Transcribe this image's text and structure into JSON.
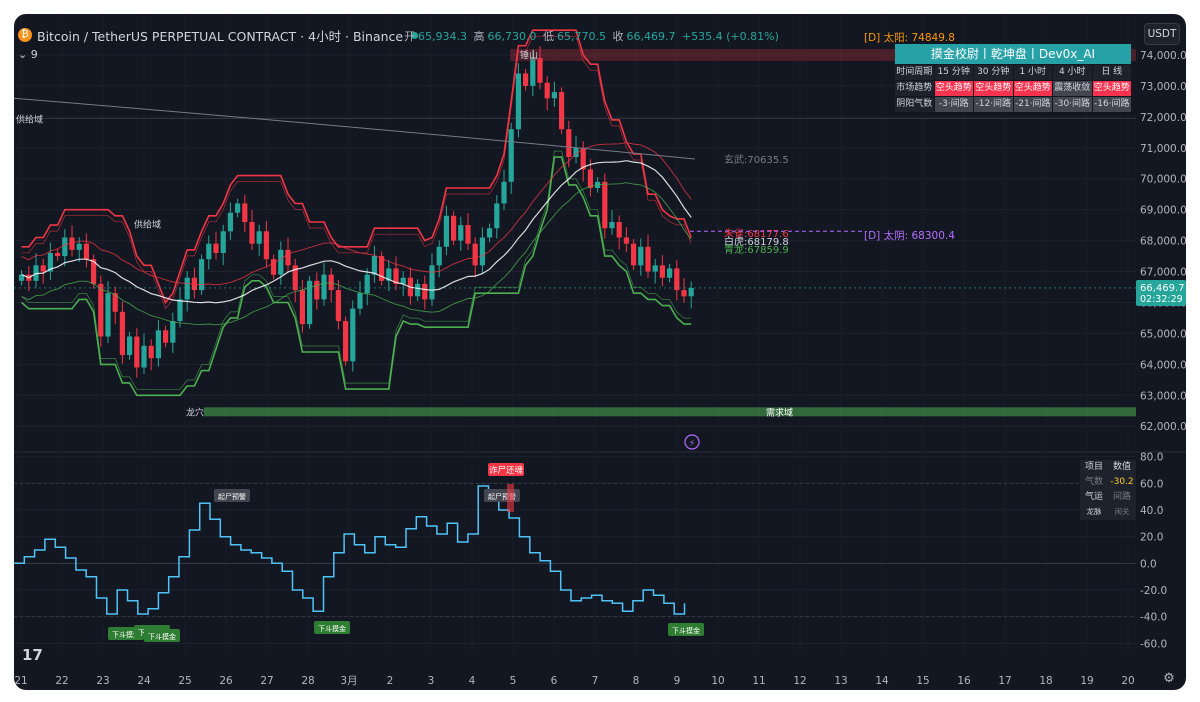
{
  "header": {
    "symbol_title": "Bitcoin / TetherUS PERPETUAL CONTRACT · 4小时 · Binance",
    "open_label": "开",
    "open": "65,934.3",
    "high_label": "高",
    "high": "66,730.0",
    "low_label": "低",
    "low": "65,770.5",
    "close_label": "收",
    "close": "66,469.7",
    "change": "+535.4 (+0.81%)",
    "indicator_count": "9",
    "currency": "USDT"
  },
  "tags": {
    "daily_sun": "[D] 太阳: 74849.8",
    "daily_moon": "[D] 太阴: 68300.4"
  },
  "price_labels": {
    "last_price": "66,469.7",
    "countdown": "02:32:29"
  },
  "dashboard": {
    "title": "摸金校尉丨乾坤盘丨Dev0x_AI",
    "rows": [
      {
        "label": "时间周期",
        "cells": [
          "15 分钟",
          "30 分钟",
          "1 小时",
          "4 小时",
          "日 线"
        ]
      },
      {
        "label": "市场趋势",
        "cells": [
          "空头趋势",
          "空头趋势",
          "空头趋势",
          "震荡收敛",
          "空头趋势"
        ]
      },
      {
        "label": "阴阳气数",
        "cells": [
          "-3·间路",
          "-12·间路",
          "-21·间路",
          "-30·间路",
          "-16·间路"
        ]
      }
    ]
  },
  "subdash": {
    "header": [
      "项目",
      "数值"
    ],
    "rows": [
      [
        "气数",
        "-30.2"
      ],
      [
        "气运",
        "间路"
      ],
      [
        "龙脉",
        "闲关"
      ]
    ]
  },
  "colors": {
    "bull": "#26a69a",
    "bear": "#f23645",
    "osc": "#4fc3f7",
    "upper_band": "#f23645",
    "lower_band": "#4caf50"
  },
  "chart_data": [
    {
      "type": "candlestick",
      "y_axis_ticks": [
        "74,000.0",
        "73,000.0",
        "72,000.0",
        "71,000.0",
        "70,000.0",
        "69,000.0",
        "68,000.0",
        "67,000.0",
        "66,000.0",
        "65,000.0",
        "64,000.0",
        "63,000.0",
        "62,000.0"
      ],
      "ylim": [
        61200,
        75000
      ],
      "x_axis_ticks": [
        "21",
        "22",
        "23",
        "24",
        "25",
        "26",
        "27",
        "28",
        "3月",
        "2",
        "3",
        "4",
        "5",
        "6",
        "7",
        "8",
        "9",
        "10",
        "11",
        "12",
        "13",
        "14",
        "15",
        "16",
        "17",
        "18",
        "19",
        "20"
      ],
      "line_labels": {
        "xuanwu": "玄武:70635.5",
        "zhuque": "朱雀:68177.6",
        "baihu": "白虎:68179.8",
        "qinglong": "青龙:67859.9"
      },
      "zones": {
        "supply": "供给域",
        "supply2": "供给域",
        "peak": "锤山",
        "demand": "需求域",
        "dragon": "龙穴"
      },
      "closes": [
        66900,
        66700,
        67200,
        67000,
        67600,
        67500,
        68100,
        67700,
        67900,
        67400,
        66600,
        64900,
        66300,
        65700,
        64300,
        64900,
        63900,
        64600,
        64200,
        65100,
        64700,
        65400,
        66100,
        66800,
        66400,
        67400,
        67900,
        67600,
        68300,
        68900,
        69200,
        68600,
        67900,
        68300,
        67400,
        66900,
        67700,
        67200,
        66400,
        65300,
        66700,
        66100,
        66900,
        66400,
        65400,
        64100,
        65800,
        66300,
        66900,
        67500,
        66700,
        67100,
        66600,
        66800,
        66200,
        66600,
        66100,
        67200,
        67800,
        68800,
        68000,
        68500,
        67900,
        67200,
        68100,
        68400,
        69200,
        69900,
        71600,
        73400,
        73000,
        73900,
        73100,
        72600,
        72800,
        71600,
        70700,
        71000,
        70300,
        69700,
        69900,
        68400,
        68600,
        68100,
        67900,
        67200,
        67800,
        67000,
        67200,
        66800,
        67100,
        66400,
        66200,
        66470
      ],
      "oscillator": {
        "values": [
          0,
          5,
          10,
          18,
          12,
          4,
          -5,
          -10,
          -26,
          -38,
          -20,
          -28,
          -38,
          -34,
          -22,
          -10,
          5,
          25,
          45,
          33,
          20,
          14,
          10,
          8,
          4,
          0,
          -6,
          -20,
          -26,
          -36,
          -10,
          8,
          22,
          14,
          8,
          20,
          14,
          12,
          26,
          35,
          28,
          22,
          30,
          16,
          22,
          58,
          48,
          40,
          34,
          20,
          8,
          2,
          -6,
          -20,
          -28,
          -26,
          -24,
          -28,
          -30,
          -36,
          -28,
          -20,
          -24,
          -30,
          -38,
          -30
        ],
        "ylim": [
          -68,
          82
        ],
        "y_axis_ticks": [
          "80.0",
          "60.0",
          "40.0",
          "20.0",
          "0.0",
          "-20.0",
          "-40.0",
          "-60.0"
        ],
        "signals": {
          "top_warn": "起尸预警",
          "top_reverse": "诈尸还魂",
          "bottom": "下斗摸金"
        }
      }
    }
  ]
}
